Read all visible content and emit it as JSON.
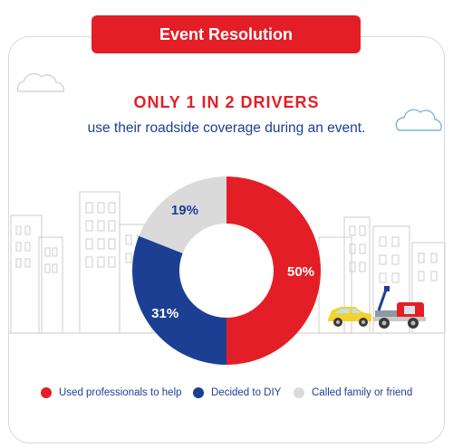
{
  "banner": {
    "title": "Event Resolution"
  },
  "headline": "ONLY 1 IN 2 DRIVERS",
  "subline": "use their roadside coverage during an event.",
  "colors": {
    "red": "#e41e26",
    "blue": "#1c3f94",
    "gray": "#dadada"
  },
  "chart_data": {
    "type": "pie",
    "variant": "donut",
    "categories": [
      "Used professionals to help",
      "Decided to DIY",
      "Called family or friend"
    ],
    "values": [
      50,
      31,
      19
    ],
    "labels": [
      "50%",
      "31%",
      "19%"
    ],
    "colors": [
      "#e41e26",
      "#1c3f94",
      "#dadada"
    ],
    "legend_position": "bottom"
  }
}
